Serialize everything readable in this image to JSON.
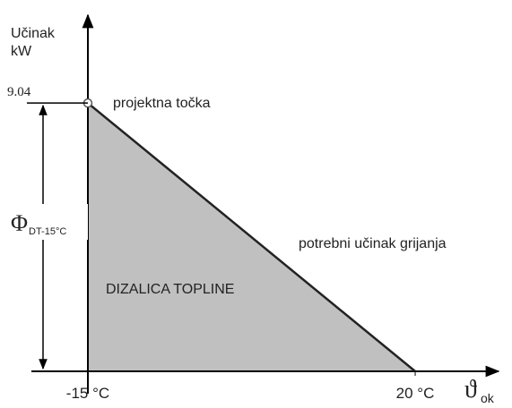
{
  "chart_data": {
    "type": "area",
    "y_label": [
      "Učinak",
      "kW"
    ],
    "x_label": {
      "symbol": "ϑ",
      "subscript": "ok"
    },
    "dimension_label": {
      "symbol": "Φ",
      "subscript": "DT-15°C"
    },
    "annotations": [
      "projektna točka",
      "potrebni učinak grijanja",
      "DIZALICA TOPLINE"
    ],
    "x": [
      -15,
      20
    ],
    "values": [
      9.04,
      0
    ],
    "color": "#c0c0c0",
    "xlim": [
      -21,
      29
    ],
    "ylim": [
      0,
      12
    ],
    "xticks": [
      {
        "value": -15,
        "label": "-15 °C"
      },
      {
        "value": 20,
        "label": "20 °C"
      }
    ],
    "yticks": [
      9.04
    ]
  }
}
